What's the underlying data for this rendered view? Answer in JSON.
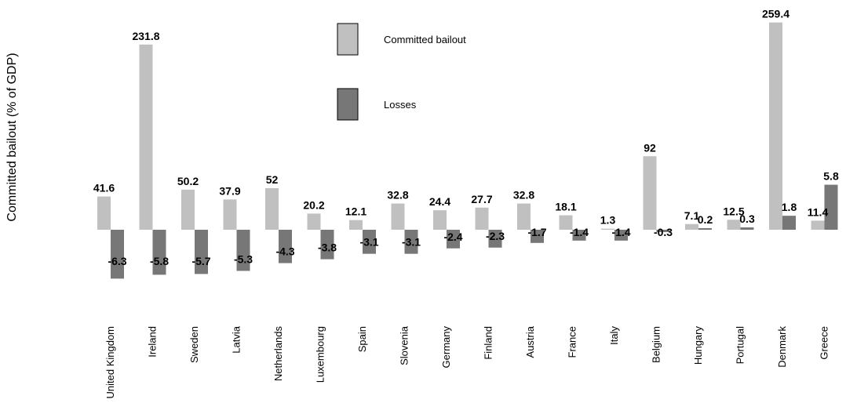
{
  "chart_data": {
    "type": "bar",
    "title": "",
    "xlabel": "",
    "ylabel": "Committed bailout (% of GDP)",
    "categories": [
      "United Kingdom",
      "Ireland",
      "Sweden",
      "Latvia",
      "Netherlands",
      "Luxembourg",
      "Spain",
      "Slovenia",
      "Germany",
      "Finland",
      "Austria",
      "France",
      "Italy",
      "Belgium",
      "Hungary",
      "Portugal",
      "Denmark",
      "Greece"
    ],
    "series": [
      {
        "name": "Committed bailout",
        "color": "#c0c0c0",
        "values": [
          41.6,
          231.8,
          50.2,
          37.9,
          52,
          20.2,
          12.1,
          32.8,
          24.4,
          27.7,
          32.8,
          18.1,
          1.3,
          92,
          7.1,
          12.5,
          259.4,
          11.4
        ],
        "labels": [
          "41.6",
          "231.8",
          "50.2",
          "37.9",
          "52",
          "20.2",
          "12.1",
          "32.8",
          "24.4",
          "27.7",
          "32.8",
          "18.1",
          "1.3",
          "92",
          "7.1",
          "12.5",
          "259.4",
          "11.4"
        ]
      },
      {
        "name": "Losses",
        "color": "#777777",
        "values": [
          -6.3,
          -5.8,
          -5.7,
          -5.3,
          -4.3,
          -3.8,
          -3.1,
          -3.1,
          -2.4,
          -2.3,
          -1.7,
          -1.4,
          -1.4,
          -0.3,
          0.2,
          0.3,
          1.8,
          5.8
        ],
        "labels": [
          "-6.3",
          "-5.8",
          "-5.7",
          "-5.3",
          "-4.3",
          "-3.8",
          "-3.1",
          "-3.1",
          "-2.4",
          "-2.3",
          "-1.7",
          "-1.4",
          "-1.4",
          "-0.3",
          "0.2",
          "0.3",
          "1.8",
          "5.8"
        ]
      }
    ],
    "legend": {
      "position": "top-center"
    },
    "grid": false
  }
}
